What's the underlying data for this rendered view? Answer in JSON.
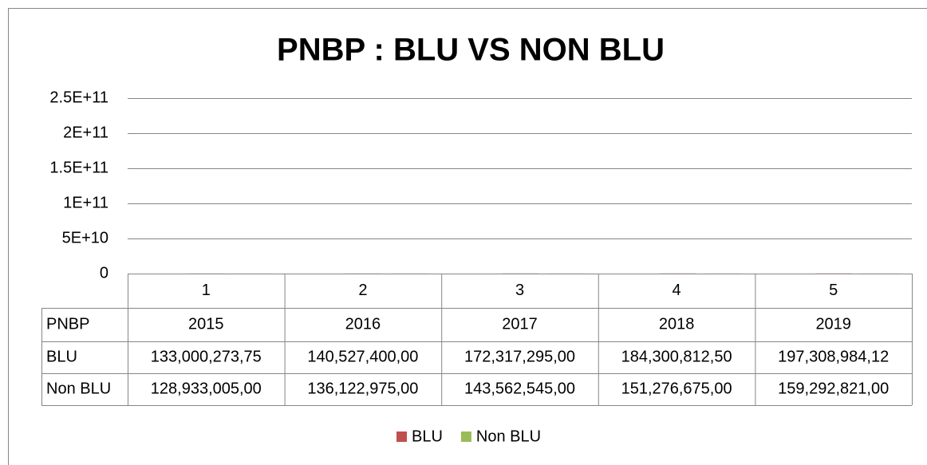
{
  "chart_data": {
    "type": "bar",
    "title": "PNBP : BLU VS NON BLU",
    "categories": [
      "1",
      "2",
      "3",
      "4",
      "5"
    ],
    "series": [
      {
        "name": "BLU",
        "color": "#c0504d",
        "values": [
          133000273.75,
          140527400,
          172317295,
          184300812.5,
          197308984.12
        ],
        "value_labels": [
          "133,000,273,75",
          "140,527,400,00",
          "172,317,295,00",
          "184,300,812,50",
          "197,308,984,12"
        ]
      },
      {
        "name": "Non BLU",
        "color": "#9bbb59",
        "values": [
          128933005,
          136122975,
          143562545,
          151276675,
          159292821
        ],
        "value_labels": [
          "128,933,005,00",
          "136,122,975,00",
          "143,562,545,00",
          "151,276,675,00",
          "159,292,821,00"
        ]
      }
    ],
    "data_table": {
      "header": "PNBP",
      "years": [
        "2015",
        "2016",
        "2017",
        "2018",
        "2019"
      ]
    },
    "ylim": [
      0,
      250000000000
    ],
    "yticks": [
      0,
      {
        "value": 50000000000,
        "label": "5E+10"
      },
      {
        "value": 100000000000,
        "label": "1E+11"
      },
      {
        "value": 150000000000,
        "label": "1.5E+11"
      },
      {
        "value": 200000000000,
        "label": "2E+11"
      },
      {
        "value": 250000000000,
        "label": "2.5E+11"
      }
    ],
    "grid": true,
    "legend": "bottom"
  }
}
